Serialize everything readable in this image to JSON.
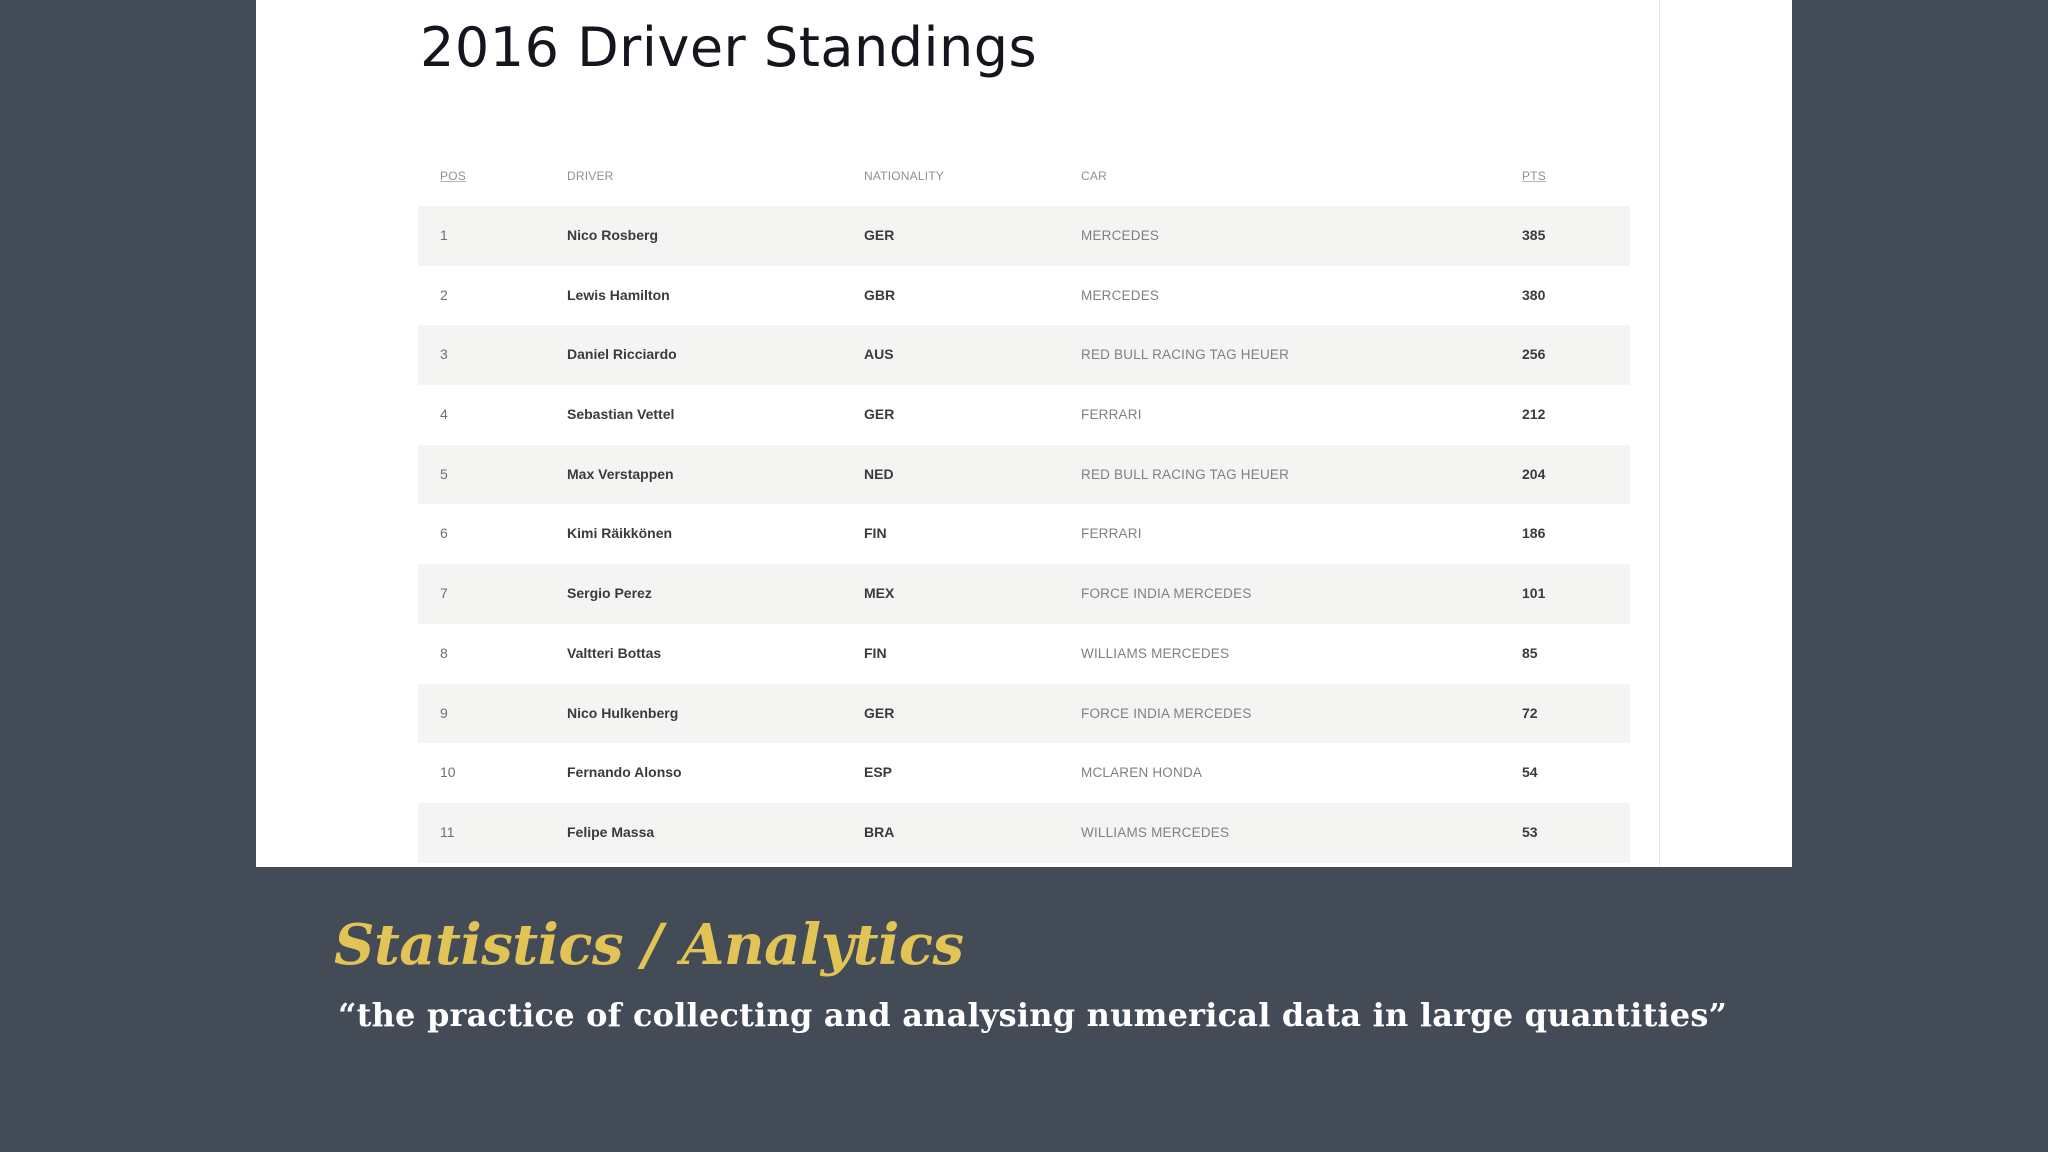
{
  "standings": {
    "title": "2016 Driver Standings",
    "columns": {
      "pos": "POS",
      "driver": "DRIVER",
      "nationality": "NATIONALITY",
      "car": "CAR",
      "pts": "PTS"
    },
    "rows": [
      {
        "pos": "1",
        "driver": "Nico Rosberg",
        "nationality": "GER",
        "car": "MERCEDES",
        "pts": "385"
      },
      {
        "pos": "2",
        "driver": "Lewis Hamilton",
        "nationality": "GBR",
        "car": "MERCEDES",
        "pts": "380"
      },
      {
        "pos": "3",
        "driver": "Daniel Ricciardo",
        "nationality": "AUS",
        "car": "RED BULL RACING TAG HEUER",
        "pts": "256"
      },
      {
        "pos": "4",
        "driver": "Sebastian Vettel",
        "nationality": "GER",
        "car": "FERRARI",
        "pts": "212"
      },
      {
        "pos": "5",
        "driver": "Max Verstappen",
        "nationality": "NED",
        "car": "RED BULL RACING TAG HEUER",
        "pts": "204"
      },
      {
        "pos": "6",
        "driver": "Kimi Räikkönen",
        "nationality": "FIN",
        "car": "FERRARI",
        "pts": "186"
      },
      {
        "pos": "7",
        "driver": "Sergio Perez",
        "nationality": "MEX",
        "car": "FORCE INDIA MERCEDES",
        "pts": "101"
      },
      {
        "pos": "8",
        "driver": "Valtteri Bottas",
        "nationality": "FIN",
        "car": "WILLIAMS MERCEDES",
        "pts": "85"
      },
      {
        "pos": "9",
        "driver": "Nico Hulkenberg",
        "nationality": "GER",
        "car": "FORCE INDIA MERCEDES",
        "pts": "72"
      },
      {
        "pos": "10",
        "driver": "Fernando Alonso",
        "nationality": "ESP",
        "car": "MCLAREN HONDA",
        "pts": "54"
      },
      {
        "pos": "11",
        "driver": "Felipe Massa",
        "nationality": "BRA",
        "car": "WILLIAMS MERCEDES",
        "pts": "53"
      }
    ]
  },
  "caption": {
    "title": "Statistics / Analytics",
    "quote": "“the practice of collecting and analysing numerical data in large quantities”"
  },
  "colors": {
    "background": "#434b56",
    "caption_title": "#e2c356",
    "caption_quote": "#ffffff",
    "row_stripe": "#f4f4f3"
  }
}
